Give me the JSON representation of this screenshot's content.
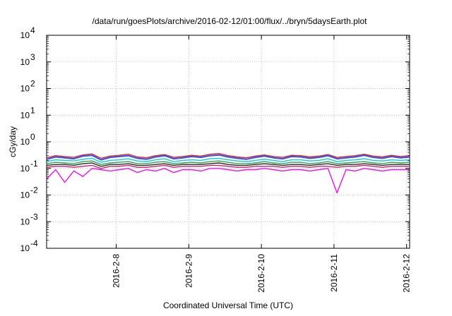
{
  "chart_data": {
    "type": "line",
    "title": "/data/run/goesPlots/archive/2016-02-12/01:00/flux/../bryn/5daysEarth.plot",
    "xlabel": "Coordinated Universal Time (UTC)",
    "ylabel": "cGy/day",
    "yscale": "log",
    "ylim": [
      0.0001,
      10000
    ],
    "xlim": [
      "2016-02-07T01:00",
      "2016-02-12T01:00"
    ],
    "grid": true,
    "yticks": [
      {
        "value": 0.0001,
        "base": "10",
        "exp": "-4"
      },
      {
        "value": 0.001,
        "base": "10",
        "exp": "-3"
      },
      {
        "value": 0.01,
        "base": "10",
        "exp": "-2"
      },
      {
        "value": 0.1,
        "base": "10",
        "exp": "-1"
      },
      {
        "value": 1,
        "base": "10",
        "exp": "0"
      },
      {
        "value": 10,
        "base": "10",
        "exp": "1"
      },
      {
        "value": 100,
        "base": "10",
        "exp": "2"
      },
      {
        "value": 1000,
        "base": "10",
        "exp": "3"
      },
      {
        "value": 10000,
        "base": "10",
        "exp": "4"
      }
    ],
    "xticks": [
      {
        "value": "2016-02-08T00:00",
        "label": "2016-2-8"
      },
      {
        "value": "2016-02-09T00:00",
        "label": "2016-2-9"
      },
      {
        "value": "2016-02-10T00:00",
        "label": "2016-2-10"
      },
      {
        "value": "2016-02-11T00:00",
        "label": "2016-2-11"
      },
      {
        "value": "2016-02-12T00:00",
        "label": "2016-2-12"
      }
    ],
    "x": [
      "2016-02-07T01:00",
      "2016-02-07T04:00",
      "2016-02-07T07:00",
      "2016-02-07T10:00",
      "2016-02-07T13:00",
      "2016-02-07T16:00",
      "2016-02-07T19:00",
      "2016-02-07T22:00",
      "2016-02-08T01:00",
      "2016-02-08T04:00",
      "2016-02-08T07:00",
      "2016-02-08T10:00",
      "2016-02-08T13:00",
      "2016-02-08T16:00",
      "2016-02-08T19:00",
      "2016-02-08T22:00",
      "2016-02-09T01:00",
      "2016-02-09T04:00",
      "2016-02-09T07:00",
      "2016-02-09T10:00",
      "2016-02-09T13:00",
      "2016-02-09T16:00",
      "2016-02-09T19:00",
      "2016-02-09T22:00",
      "2016-02-10T01:00",
      "2016-02-10T04:00",
      "2016-02-10T07:00",
      "2016-02-10T10:00",
      "2016-02-10T13:00",
      "2016-02-10T16:00",
      "2016-02-10T19:00",
      "2016-02-10T22:00",
      "2016-02-11T01:00",
      "2016-02-11T04:00",
      "2016-02-11T07:00",
      "2016-02-11T10:00",
      "2016-02-11T13:00",
      "2016-02-11T16:00",
      "2016-02-11T19:00",
      "2016-02-11T22:00",
      "2016-02-12T01:00"
    ],
    "series": [
      {
        "color": "#e8231a",
        "values": [
          0.25,
          0.3,
          0.28,
          0.26,
          0.32,
          0.35,
          0.24,
          0.29,
          0.31,
          0.34,
          0.27,
          0.25,
          0.3,
          0.33,
          0.26,
          0.28,
          0.31,
          0.29,
          0.34,
          0.36,
          0.3,
          0.27,
          0.25,
          0.29,
          0.32,
          0.28,
          0.26,
          0.31,
          0.3,
          0.27,
          0.29,
          0.33,
          0.26,
          0.28,
          0.3,
          0.34,
          0.29,
          0.27,
          0.31,
          0.28,
          0.3
        ]
      },
      {
        "color": "#3050f0",
        "values": [
          0.22,
          0.27,
          0.25,
          0.23,
          0.29,
          0.31,
          0.21,
          0.26,
          0.28,
          0.3,
          0.24,
          0.22,
          0.27,
          0.3,
          0.23,
          0.25,
          0.28,
          0.26,
          0.3,
          0.32,
          0.27,
          0.24,
          0.22,
          0.26,
          0.29,
          0.25,
          0.23,
          0.28,
          0.27,
          0.24,
          0.26,
          0.3,
          0.23,
          0.25,
          0.27,
          0.31,
          0.26,
          0.24,
          0.28,
          0.25,
          0.27
        ]
      },
      {
        "color": "#10c8e0",
        "values": [
          0.18,
          0.21,
          0.2,
          0.19,
          0.22,
          0.24,
          0.17,
          0.2,
          0.21,
          0.23,
          0.19,
          0.18,
          0.21,
          0.23,
          0.18,
          0.2,
          0.21,
          0.2,
          0.23,
          0.24,
          0.21,
          0.19,
          0.18,
          0.2,
          0.22,
          0.2,
          0.18,
          0.21,
          0.21,
          0.19,
          0.2,
          0.23,
          0.18,
          0.2,
          0.21,
          0.23,
          0.2,
          0.19,
          0.21,
          0.2,
          0.21
        ]
      },
      {
        "color": "#2aa84a",
        "values": [
          0.15,
          0.17,
          0.16,
          0.15,
          0.18,
          0.19,
          0.14,
          0.16,
          0.17,
          0.18,
          0.15,
          0.15,
          0.17,
          0.18,
          0.15,
          0.16,
          0.17,
          0.16,
          0.18,
          0.19,
          0.17,
          0.15,
          0.15,
          0.16,
          0.18,
          0.16,
          0.15,
          0.17,
          0.17,
          0.15,
          0.16,
          0.18,
          0.15,
          0.16,
          0.17,
          0.18,
          0.16,
          0.15,
          0.17,
          0.16,
          0.17
        ]
      },
      {
        "color": "#2a2a2a",
        "values": [
          0.13,
          0.14,
          0.14,
          0.13,
          0.15,
          0.16,
          0.12,
          0.14,
          0.14,
          0.15,
          0.13,
          0.13,
          0.14,
          0.15,
          0.13,
          0.14,
          0.14,
          0.14,
          0.15,
          0.16,
          0.14,
          0.13,
          0.13,
          0.14,
          0.15,
          0.14,
          0.13,
          0.14,
          0.14,
          0.13,
          0.14,
          0.15,
          0.13,
          0.14,
          0.14,
          0.15,
          0.14,
          0.13,
          0.14,
          0.14,
          0.14
        ]
      },
      {
        "color": "#d0206a",
        "values": [
          0.11,
          0.12,
          0.12,
          0.11,
          0.12,
          0.13,
          0.1,
          0.12,
          0.12,
          0.13,
          0.11,
          0.11,
          0.12,
          0.13,
          0.11,
          0.12,
          0.12,
          0.12,
          0.13,
          0.13,
          0.12,
          0.11,
          0.11,
          0.12,
          0.12,
          0.12,
          0.11,
          0.12,
          0.12,
          0.11,
          0.12,
          0.12,
          0.11,
          0.12,
          0.12,
          0.13,
          0.12,
          0.11,
          0.12,
          0.12,
          0.12
        ]
      },
      {
        "color": "#ee10ee",
        "values": [
          0.04,
          0.09,
          0.03,
          0.08,
          0.05,
          0.1,
          0.09,
          0.08,
          0.09,
          0.1,
          0.07,
          0.09,
          0.08,
          0.1,
          0.07,
          0.09,
          0.09,
          0.08,
          0.1,
          0.1,
          0.09,
          0.08,
          0.09,
          0.09,
          0.1,
          0.09,
          0.08,
          0.09,
          0.09,
          0.08,
          0.09,
          0.1,
          0.012,
          0.09,
          0.08,
          0.1,
          0.09,
          0.08,
          0.09,
          0.09,
          0.09
        ]
      }
    ]
  }
}
